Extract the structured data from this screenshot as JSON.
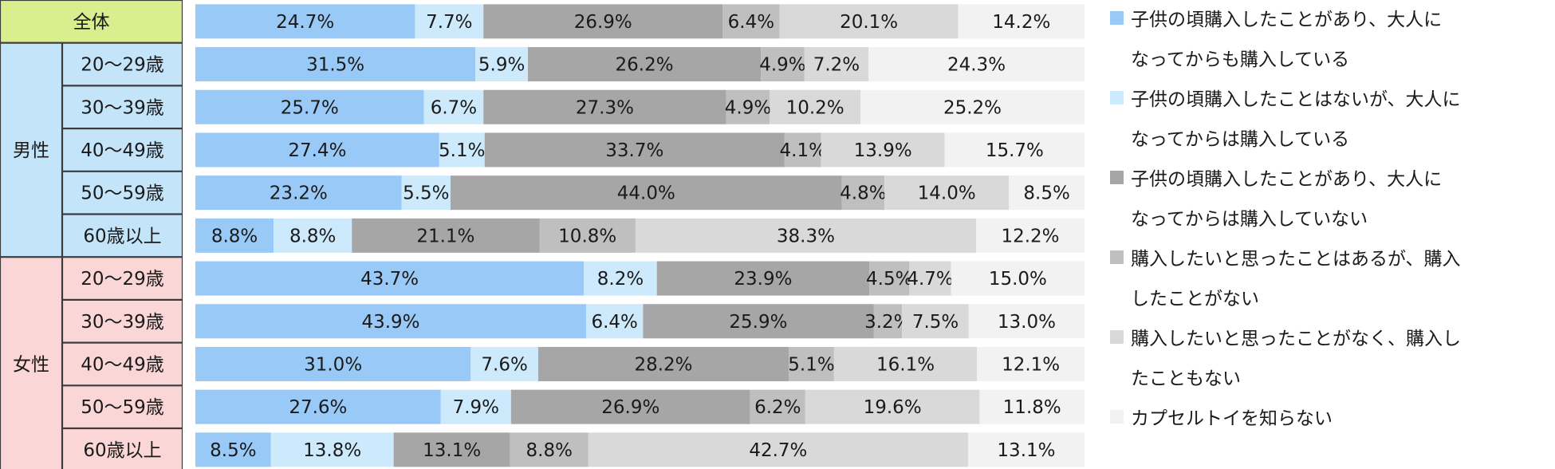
{
  "chart_data": {
    "type": "bar",
    "stacked": true,
    "orientation": "horizontal",
    "normalized": true,
    "grid": false,
    "legend_position": "right",
    "categories": [
      {
        "group": "全体",
        "label": ""
      },
      {
        "group": "男性",
        "label": "20～29歳"
      },
      {
        "group": "男性",
        "label": "30～39歳"
      },
      {
        "group": "男性",
        "label": "40～49歳"
      },
      {
        "group": "男性",
        "label": "50～59歳"
      },
      {
        "group": "男性",
        "label": "60歳以上"
      },
      {
        "group": "女性",
        "label": "20～29歳"
      },
      {
        "group": "女性",
        "label": "30～39歳"
      },
      {
        "group": "女性",
        "label": "40～49歳"
      },
      {
        "group": "女性",
        "label": "50～59歳"
      },
      {
        "group": "女性",
        "label": "60歳以上"
      }
    ],
    "groups": [
      {
        "name": "全体",
        "color": "#d9ee8c"
      },
      {
        "name": "男性",
        "color": "#c4e4fa"
      },
      {
        "name": "女性",
        "color": "#fad6d6"
      }
    ],
    "series": [
      {
        "name": "子供の頃購入したことがあり、大人になってからも購入している",
        "color": "#99c9f7",
        "values": [
          24.7,
          31.5,
          25.7,
          27.4,
          23.2,
          8.8,
          43.7,
          43.9,
          31.0,
          27.6,
          8.5
        ]
      },
      {
        "name": "子供の頃購入したことはないが、大人になってからは購入している",
        "color": "#cdeafc",
        "values": [
          7.7,
          5.9,
          6.7,
          5.1,
          5.5,
          8.8,
          8.2,
          6.4,
          7.6,
          7.9,
          13.8
        ]
      },
      {
        "name": "子供の頃購入したことがあり、大人になってからは購入していない",
        "color": "#a6a6a6",
        "values": [
          26.9,
          26.2,
          27.3,
          33.7,
          44.0,
          21.1,
          23.9,
          25.9,
          28.2,
          26.9,
          13.1
        ]
      },
      {
        "name": "購入したいと思ったことはあるが、購入したことがない",
        "color": "#bfbfbf",
        "values": [
          6.4,
          4.9,
          4.9,
          4.1,
          4.8,
          10.8,
          4.5,
          3.2,
          5.1,
          6.2,
          8.8
        ]
      },
      {
        "name": "購入したいと思ったことがなく、購入したこともない",
        "color": "#d9d9d9",
        "values": [
          20.1,
          7.2,
          10.2,
          13.9,
          14.0,
          38.3,
          4.7,
          7.5,
          16.1,
          19.6,
          42.7
        ]
      },
      {
        "name": "カプセルトイを知らない",
        "color": "#f2f2f2",
        "values": [
          14.2,
          24.3,
          25.2,
          15.7,
          8.5,
          12.2,
          15.0,
          13.0,
          12.1,
          11.8,
          13.1
        ]
      }
    ],
    "value_labels": [
      [
        "24.7%",
        "7.7%",
        "26.9%",
        "6.4%",
        "20.1%",
        "14.2%"
      ],
      [
        "31.5%",
        "5.9%",
        "26.2%",
        "4.9%",
        "7.2%",
        "24.3%"
      ],
      [
        "25.7%",
        "6.7%",
        "27.3%",
        "4.9%",
        "10.2%",
        "25.2%"
      ],
      [
        "27.4%",
        "5.1%",
        "33.7%",
        "4.1%",
        "13.9%",
        "15.7%"
      ],
      [
        "23.2%",
        "5.5%",
        "44.0%",
        "4.8%",
        "14.0%",
        "8.5%"
      ],
      [
        "8.8%",
        "8.8%",
        "21.1%",
        "10.8%",
        "38.3%",
        "12.2%"
      ],
      [
        "43.7%",
        "8.2%",
        "23.9%",
        "4.5%",
        "4.7%",
        "15.0%"
      ],
      [
        "43.9%",
        "6.4%",
        "25.9%",
        "3.2%",
        "7.5%",
        "13.0%"
      ],
      [
        "31.0%",
        "7.6%",
        "28.2%",
        "5.1%",
        "16.1%",
        "12.1%"
      ],
      [
        "27.6%",
        "7.9%",
        "26.9%",
        "6.2%",
        "19.6%",
        "11.8%"
      ],
      [
        "8.5%",
        "13.8%",
        "13.1%",
        "8.8%",
        "42.7%",
        "13.1%"
      ]
    ],
    "legend": [
      {
        "label": "子供の頃購入したことがあり、大人になってからも購入している",
        "lines": [
          "子供の頃購入したことがあり、大人に",
          "なってからも購入している"
        ]
      },
      {
        "label": "子供の頃購入したことはないが、大人になってからは購入している",
        "lines": [
          "子供の頃購入したことはないが、大人に",
          "なってからは購入している"
        ]
      },
      {
        "label": "子供の頃購入したことがあり、大人になってからは購入していない",
        "lines": [
          "子供の頃購入したことがあり、大人に",
          "なってからは購入していない"
        ]
      },
      {
        "label": "購入したいと思ったことはあるが、購入したことがない",
        "lines": [
          "購入したいと思ったことはあるが、購入",
          "したことがない"
        ]
      },
      {
        "label": "購入したいと思ったことがなく、購入したこともない",
        "lines": [
          "購入したいと思ったことがなく、購入し",
          "たこともない"
        ]
      },
      {
        "label": "カプセルトイを知らない",
        "lines": [
          "カプセルトイを知らない"
        ]
      }
    ]
  }
}
